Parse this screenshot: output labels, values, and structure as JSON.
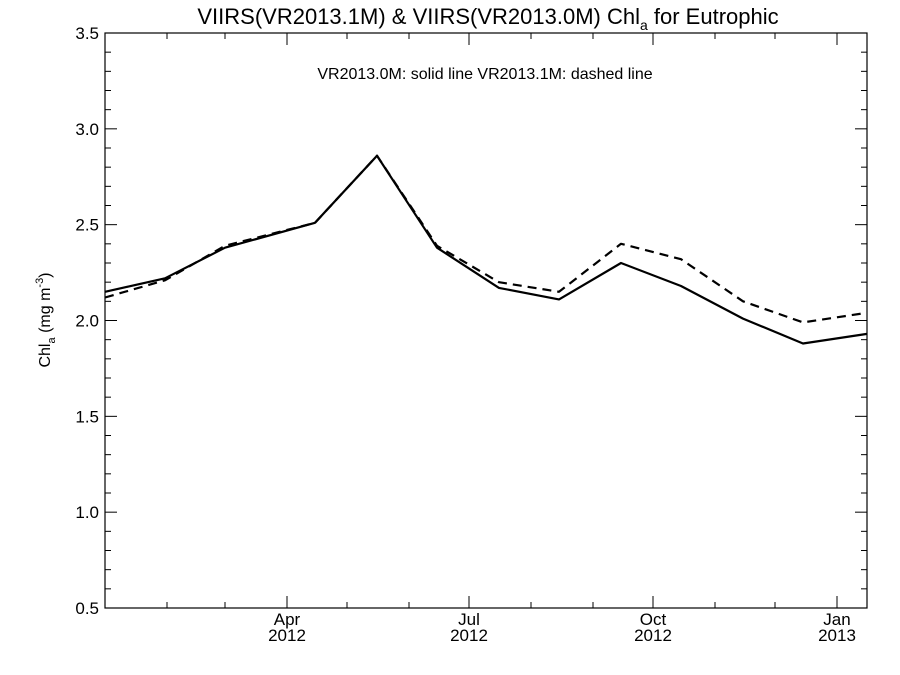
{
  "chart_data": {
    "type": "line",
    "title": {
      "prefix": "VIIRS(VR2013.1M) & VIIRS(VR2013.0M)  Chl",
      "subscript": "a",
      "suffix": " for Eutrophic"
    },
    "annotation": "VR2013.0M: solid line   VR2013.1M: dashed line",
    "ylabel": {
      "prefix": "Chl",
      "subscript": "a",
      "middle": " (mg m",
      "superscript": "-3",
      "suffix": ")"
    },
    "xlabel": "",
    "ylim": [
      0.5,
      3.5
    ],
    "y_ticks": [
      0.5,
      1.0,
      1.5,
      2.0,
      2.5,
      3.0,
      3.5
    ],
    "y_tick_labels": [
      "0.5",
      "1.0",
      "1.5",
      "2.0",
      "2.5",
      "3.0",
      "3.5"
    ],
    "xlim": [
      "2012-01-01",
      "2013-01-16"
    ],
    "x_major_ticks": [
      {
        "date": "2012-04-01",
        "month": "Apr",
        "year": "2012"
      },
      {
        "date": "2012-07-01",
        "month": "Jul",
        "year": "2012"
      },
      {
        "date": "2012-10-01",
        "month": "Oct",
        "year": "2012"
      },
      {
        "date": "2013-01-01",
        "month": "Jan",
        "year": "2013"
      }
    ],
    "x_minor_ticks": [
      "2012-02-01",
      "2012-03-01",
      "2012-05-01",
      "2012-06-01",
      "2012-08-01",
      "2012-09-01",
      "2012-11-01",
      "2012-12-01"
    ],
    "series": [
      {
        "name": "VR2013.0M",
        "style": "solid",
        "x": [
          "2012-01-01",
          "2012-01-31",
          "2012-03-01",
          "2012-04-15",
          "2012-05-16",
          "2012-06-15",
          "2012-07-16",
          "2012-08-15",
          "2012-09-15",
          "2012-10-15",
          "2012-11-15",
          "2012-12-15",
          "2013-01-16"
        ],
        "values": [
          2.15,
          2.22,
          2.38,
          2.51,
          2.86,
          2.38,
          2.17,
          2.11,
          2.3,
          2.18,
          2.01,
          1.88,
          1.93
        ]
      },
      {
        "name": "VR2013.1M",
        "style": "dashed",
        "x": [
          "2012-01-01",
          "2012-01-31",
          "2012-03-01",
          "2012-04-15",
          "2012-05-16",
          "2012-06-15",
          "2012-07-16",
          "2012-08-15",
          "2012-09-15",
          "2012-10-15",
          "2012-11-15",
          "2012-12-15",
          "2013-01-16"
        ],
        "values": [
          2.12,
          2.21,
          2.39,
          2.51,
          2.86,
          2.39,
          2.2,
          2.15,
          2.4,
          2.32,
          2.1,
          1.99,
          2.04
        ]
      }
    ],
    "grid": false,
    "colors": {
      "line": "#000000",
      "background": "#ffffff"
    }
  }
}
